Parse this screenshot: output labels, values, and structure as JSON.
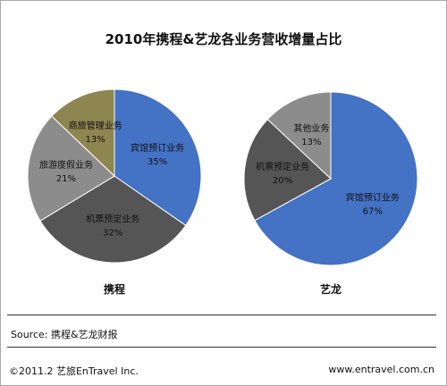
{
  "chart_data": {
    "type": "pie",
    "title": "2010年携程&艺龙各业务营收增量占比",
    "charts": [
      {
        "name": "携程",
        "slices": [
          {
            "label": "宾馆预订业务",
            "value": 35,
            "pct": "35%",
            "color": "#4472C4"
          },
          {
            "label": "机票预定业务",
            "value": 32,
            "pct": "32%",
            "color": "#555555"
          },
          {
            "label": "旅游度假业务",
            "value": 21,
            "pct": "21%",
            "color": "#8C8C8C"
          },
          {
            "label": "商旅管理业务",
            "value": 13,
            "pct": "13%",
            "color": "#8E8650"
          }
        ]
      },
      {
        "name": "艺龙",
        "slices": [
          {
            "label": "宾馆预订业务",
            "value": 67,
            "pct": "67%",
            "color": "#4472C4"
          },
          {
            "label": "机票预定业务",
            "value": 20,
            "pct": "20%",
            "color": "#555555"
          },
          {
            "label": "其他业务",
            "value": 13,
            "pct": "13%",
            "color": "#8C8C8C"
          }
        ]
      }
    ]
  },
  "source": "Source:  携程&艺龙财报",
  "footer": {
    "copyright": "©2011.2  艺旅EnTravel  Inc.",
    "website": "www.entravel.com.cn"
  }
}
